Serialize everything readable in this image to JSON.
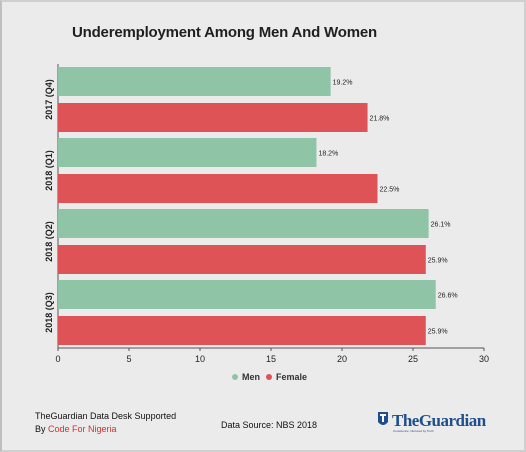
{
  "header": {
    "title": "Underemployment Among Men And Women"
  },
  "chart_data": {
    "type": "bar",
    "orientation": "horizontal",
    "title": "Underemployment Among Men And Women",
    "categories": [
      "2017 (Q4)",
      "2018 (Q1)",
      "2018 (Q2)",
      "2018 (Q3)"
    ],
    "series": [
      {
        "name": "Men",
        "color": "#8fc5a6",
        "values": [
          19.2,
          18.2,
          26.1,
          26.6
        ],
        "labels": [
          "19.2%",
          "18.2%",
          "26.1%",
          "26.6%"
        ]
      },
      {
        "name": "Female",
        "color": "#de5456",
        "values": [
          21.8,
          22.5,
          25.9,
          25.9
        ],
        "labels": [
          "21.8%",
          "22.5%",
          "25.9%",
          "25.9%"
        ]
      }
    ],
    "xlim": [
      0,
      30
    ],
    "xticks": [
      "0",
      "5",
      "10",
      "15",
      "20",
      "25",
      "30"
    ],
    "grid": false,
    "legend_position": "bottom"
  },
  "legend": {
    "items": [
      {
        "label": "Men",
        "color": "#8fc5a6"
      },
      {
        "label": "Female",
        "color": "#de5456"
      }
    ]
  },
  "footer": {
    "credit_line1": "TheGuardian Data Desk Supported",
    "credit_by": "By",
    "credit_org": "Code For Nigeria",
    "source": "Data Source: NBS 2018",
    "logo_text": "TheGuardian",
    "logo_tagline": "Conscience, Nurtured by Truth",
    "logo_icon": "guardian-shield-icon"
  }
}
